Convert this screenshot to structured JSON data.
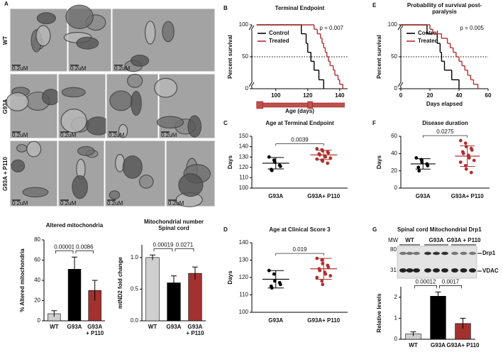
{
  "micrographs": {
    "panel": "A",
    "rows": [
      {
        "label": "WT",
        "scale_labels": [
          "0.2uM",
          "0.2uM",
          "0.2uM"
        ]
      },
      {
        "label": "G93A",
        "scale_labels": [
          "0.2uM",
          "0.2uM",
          "0.2uM",
          "0.2uM"
        ]
      },
      {
        "label": "G93A + P110",
        "scale_labels": [
          "0.2uM",
          "0.2uM",
          "0.2uM",
          "0.2uM"
        ]
      }
    ]
  },
  "blot": {
    "panel": "G",
    "title": "Spinal cord Mitochondrial Drp1",
    "mw_label": "MW",
    "mw_markers": [
      "80",
      "31"
    ],
    "lanes": [
      "WT",
      "G93A",
      "G93A + P110"
    ],
    "bands": [
      "Drp1",
      "VDAC"
    ]
  },
  "chart_data": [
    {
      "type": "bar",
      "title": "Altered mitochondria",
      "ylabel": "% Altered mitochondria",
      "categories": [
        "WT",
        "G93A",
        "G93A\n+ P110"
      ],
      "values": [
        7,
        51,
        30
      ],
      "errors": [
        3,
        12,
        10
      ],
      "colors": [
        "#cfcfcf",
        "#000000",
        "#a3312f"
      ],
      "ylim": [
        0,
        80
      ],
      "yticks": [
        0,
        20,
        40,
        60,
        80
      ],
      "comparisons": [
        {
          "between": [
            0,
            1
          ],
          "label": "0.00001"
        },
        {
          "between": [
            1,
            2
          ],
          "label": "0.0086"
        }
      ]
    },
    {
      "type": "bar",
      "title": "Mitochondrial number\nSpinal cord",
      "ylabel": "mtND2 fold change",
      "categories": [
        "WT",
        "G93A",
        "G93A\n+ P110"
      ],
      "values": [
        1.0,
        0.6,
        0.75
      ],
      "errors": [
        0.04,
        0.11,
        0.1
      ],
      "colors": [
        "#cfcfcf",
        "#000000",
        "#a3312f"
      ],
      "ylim": [
        0,
        1.2
      ],
      "yticks": [
        {
          "value": 0,
          "label": "0.0"
        },
        {
          "value": 0.5,
          "label": "0.5"
        },
        {
          "value": 1,
          "label": "1.0"
        }
      ],
      "comparisons": [
        {
          "between": [
            0,
            1
          ],
          "label": "0.00019"
        },
        {
          "between": [
            1,
            2
          ],
          "label": "0.0271"
        }
      ]
    },
    {
      "type": "step",
      "panel": "B",
      "title": "Terminal Endpoint",
      "xlabel": "Age (days)",
      "ylabel": "Percent survival",
      "annotation": "p = 0.007",
      "refline": 50,
      "xlim": [
        85,
        145
      ],
      "xticks": [
        100,
        120,
        140
      ],
      "ylim": [
        0,
        100
      ],
      "yticks": [
        0,
        50,
        100
      ],
      "series": [
        {
          "name": "Control",
          "color": "#000000",
          "x": [
            88,
            116,
            119,
            120,
            122,
            124,
            127,
            130
          ],
          "values": [
            100,
            86,
            71,
            57,
            43,
            29,
            14,
            0
          ]
        },
        {
          "name": "Treated",
          "color": "#b0302e",
          "x": [
            88,
            124,
            126,
            128,
            129,
            130,
            131,
            132,
            133,
            134,
            136,
            137,
            139,
            140,
            142
          ],
          "values": [
            100,
            93,
            86,
            79,
            71,
            64,
            57,
            50,
            43,
            36,
            29,
            21,
            14,
            7,
            0
          ]
        }
      ]
    },
    {
      "type": "step",
      "panel": "E",
      "title": "Probability of survival post-\nparalysis",
      "xlabel": "Days elapsed",
      "ylabel": "Percent survival",
      "annotation": "p = 0.005",
      "refline": 50,
      "xlim": [
        0,
        60
      ],
      "xticks": [
        0,
        20,
        40,
        60
      ],
      "ylim": [
        0,
        100
      ],
      "yticks": [
        0,
        50,
        100
      ],
      "series": [
        {
          "name": "Control",
          "color": "#000000",
          "x": [
            0,
            18,
            25,
            27,
            28,
            30,
            35,
            40
          ],
          "values": [
            100,
            86,
            71,
            57,
            43,
            29,
            14,
            0
          ]
        },
        {
          "name": "Treated",
          "color": "#b0302e",
          "x": [
            0,
            20,
            22,
            28,
            32,
            34,
            36,
            38,
            40,
            42,
            44,
            46,
            48,
            50,
            53
          ],
          "values": [
            100,
            93,
            86,
            79,
            71,
            64,
            57,
            50,
            43,
            36,
            29,
            21,
            14,
            7,
            0
          ]
        }
      ]
    },
    {
      "type": "strip",
      "panel": "C",
      "title": "Age at Terminal Endpoint",
      "ylabel": "Days",
      "ylim": [
        100,
        150
      ],
      "yticks": [
        100,
        110,
        120,
        130,
        140,
        150
      ],
      "comparison": "0.0039",
      "series": [
        {
          "name": "G93A",
          "color": "#000000",
          "values": [
            130,
            127,
            125,
            122,
            121,
            118,
            117
          ],
          "mean": 124,
          "sd": 5.5
        },
        {
          "name": "G93A+ P110",
          "color": "#b0302e",
          "values": [
            138,
            137,
            136,
            135,
            134,
            133,
            132,
            131,
            130,
            129,
            128,
            127,
            126,
            124
          ],
          "mean": 132,
          "sd": 4.5
        }
      ]
    },
    {
      "type": "strip",
      "panel": "F",
      "title": "Disease duration",
      "ylabel": "Days",
      "ylim": [
        0,
        60
      ],
      "yticks": [
        0,
        20,
        40,
        60
      ],
      "comparison": "0.0275",
      "series": [
        {
          "name": "G93A",
          "color": "#000000",
          "values": [
            35,
            33,
            30,
            28,
            26,
            24,
            20
          ],
          "mean": 28,
          "sd": 6
        },
        {
          "name": "G93A+ P110",
          "color": "#b0302e",
          "values": [
            55,
            52,
            48,
            46,
            44,
            42,
            40,
            38,
            35,
            32,
            30,
            26,
            22,
            18
          ],
          "mean": 37,
          "sd": 12
        }
      ]
    },
    {
      "type": "strip",
      "panel": "D",
      "title": "Age at Clinical Score 3",
      "ylabel": "Days",
      "ylim": [
        100,
        140
      ],
      "yticks": [
        100,
        110,
        120,
        130,
        140
      ],
      "comparison": "0.019",
      "series": [
        {
          "name": "G93A",
          "color": "#000000",
          "values": [
            124,
            122,
            118,
            117,
            116,
            115,
            114
          ],
          "mean": 119,
          "sd": 5
        },
        {
          "name": "G93A+ P110",
          "color": "#b0302e",
          "values": [
            131,
            130,
            128,
            127,
            126,
            125,
            124,
            123,
            122,
            121,
            120,
            118,
            116
          ],
          "mean": 125,
          "sd": 6
        }
      ]
    },
    {
      "type": "bar",
      "ylabel": "Relative levels",
      "categories": [
        "WT",
        "G93A",
        "G93A+ P110"
      ],
      "values": [
        0.25,
        2.05,
        0.75
      ],
      "errors": [
        0.1,
        0.2,
        0.25
      ],
      "colors": [
        "#cfcfcf",
        "#000000",
        "#a3312f"
      ],
      "ylim": [
        0,
        2.5
      ],
      "yticks": [
        0,
        1,
        2
      ],
      "comparisons": [
        {
          "between": [
            0,
            1
          ],
          "label": "0.00012"
        },
        {
          "between": [
            1,
            2
          ],
          "label": "0.0017"
        }
      ]
    }
  ]
}
